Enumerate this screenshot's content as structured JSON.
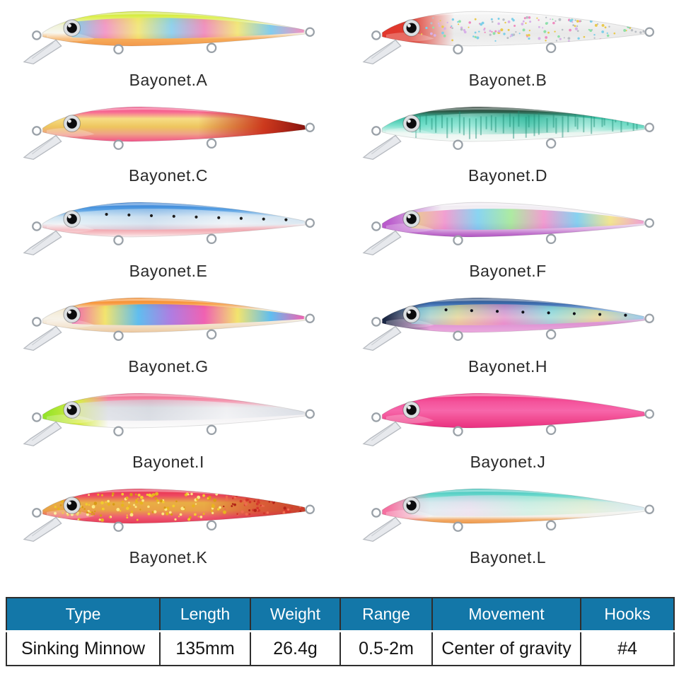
{
  "page": {
    "background": "#ffffff"
  },
  "lures": [
    {
      "label": "Bayonet.A",
      "body": [
        [
          0,
          "#c9e31f"
        ],
        [
          0.18,
          "#dff05a"
        ],
        [
          0.4,
          "#f0f2d8"
        ],
        [
          0.62,
          "#f7f7ef"
        ],
        [
          0.8,
          "#f6ab59"
        ],
        [
          1,
          "#f3994c"
        ]
      ],
      "band": {
        "colors": [
          "#5fc9f0",
          "#f285c2",
          "#f2e468",
          "#79c9f0",
          "#ef7ab8",
          "#f2e468",
          "#66c2ee",
          "#f07ab6"
        ],
        "opacity": 0.8
      }
    },
    {
      "label": "Bayonet.B",
      "body": [
        [
          0,
          "#f6f6f6"
        ],
        [
          0.35,
          "#f1f1f1"
        ],
        [
          0.65,
          "#e9e9e9"
        ],
        [
          1,
          "#f2f2f2"
        ]
      ],
      "overlay": [
        [
          0,
          "#e4342b"
        ],
        [
          0.17,
          "#df3a2e"
        ],
        [
          0.32,
          "rgba(223,58,46,0)"
        ]
      ],
      "glitter": [
        {
          "count": 170,
          "colors": [
            "#e9c94d",
            "#7ecfe8",
            "#ef8cc0",
            "#b9bec4",
            "#8fe0a8",
            "#d8b0e8"
          ],
          "x": [
            0.21,
            0.97
          ],
          "y": [
            0.24,
            0.6
          ],
          "r": [
            1.0,
            2.2
          ]
        }
      ]
    },
    {
      "label": "Bayonet.C",
      "body": [
        [
          0,
          "#f2467e"
        ],
        [
          0.16,
          "#f76d94"
        ],
        [
          0.34,
          "#f6dd85"
        ],
        [
          0.58,
          "#eec55e"
        ],
        [
          0.78,
          "#efa287"
        ],
        [
          1,
          "#f2548a"
        ]
      ],
      "overlay": [
        [
          0.6,
          "rgba(190,32,18,0)"
        ],
        [
          0.82,
          "rgba(198,32,16,0.85)"
        ],
        [
          0.95,
          "#8c1610"
        ],
        [
          1,
          "#6a100c"
        ]
      ]
    },
    {
      "label": "Bayonet.D",
      "body": [
        [
          0,
          "#22352b"
        ],
        [
          0.14,
          "#2e5d4a"
        ],
        [
          0.32,
          "#3cc3a8"
        ],
        [
          0.55,
          "#7fe2cf"
        ],
        [
          0.75,
          "#e9f5f0"
        ],
        [
          1,
          "#f6faf8"
        ]
      ],
      "band": {
        "colors": [
          "#57d8c0",
          "#bdf2e6",
          "#3bb79c",
          "#d9f6ee",
          "#49cdb2"
        ],
        "opacity": 0.5
      },
      "stripes": {
        "color": "#1d8f76",
        "opacity": 0.45,
        "count": 42
      }
    },
    {
      "label": "Bayonet.E",
      "body": [
        [
          0,
          "#2e7ad2"
        ],
        [
          0.22,
          "#5aa2e4"
        ],
        [
          0.42,
          "#cfe4f2"
        ],
        [
          0.62,
          "#eef3f6"
        ],
        [
          0.8,
          "#f2aab2"
        ],
        [
          0.9,
          "#f6c6ca"
        ],
        [
          1,
          "#fbeef0"
        ]
      ],
      "band": {
        "colors": [
          "#dff0f8",
          "#c4d8ec",
          "#f0f6fa",
          "#cfe0ee"
        ],
        "opacity": 0.55
      },
      "dots": {
        "count": 9,
        "color": "#1c1c1c"
      }
    },
    {
      "label": "Bayonet.F",
      "body": [
        [
          0,
          "#efe9f1"
        ],
        [
          0.3,
          "#f5f2f5"
        ],
        [
          0.58,
          "#f2eaf2"
        ],
        [
          0.78,
          "#dcaee2"
        ],
        [
          0.92,
          "#bd6cca"
        ],
        [
          1,
          "#b055c2"
        ]
      ],
      "overlay": [
        [
          0,
          "#b14ec6"
        ],
        [
          0.1,
          "#ba5bcc"
        ],
        [
          0.28,
          "rgba(186,91,204,0)"
        ]
      ],
      "band": {
        "colors": [
          "#f2e268",
          "#f07cc2",
          "#5cc8f0",
          "#8ee87e",
          "#f07cc2",
          "#58c4ee",
          "#f2e268",
          "#ef82c4"
        ],
        "opacity": 0.7
      }
    },
    {
      "label": "Bayonet.G",
      "body": [
        [
          0,
          "#f5831c"
        ],
        [
          0.16,
          "#f89b43"
        ],
        [
          0.34,
          "#f4ead2"
        ],
        [
          0.6,
          "#f6f2e8"
        ],
        [
          0.85,
          "#f0dbc0"
        ],
        [
          1,
          "#edc89e"
        ]
      ],
      "band": {
        "colors": [
          "#ef49aa",
          "#f2e25a",
          "#46b5f2",
          "#a468e2",
          "#ef49aa",
          "#f2e25a",
          "#46b5f2",
          "#ef49aa"
        ],
        "opacity": 0.85
      }
    },
    {
      "label": "Bayonet.H",
      "body": [
        [
          0,
          "#2c4a78"
        ],
        [
          0.18,
          "#3e6fb2"
        ],
        [
          0.38,
          "#9cc2e6"
        ],
        [
          0.56,
          "#dcd4e8"
        ],
        [
          0.74,
          "#de93d2"
        ],
        [
          1,
          "#eba9de"
        ]
      ],
      "overlay": [
        [
          0,
          "#141f38"
        ],
        [
          0.09,
          "#1a2744"
        ],
        [
          0.24,
          "rgba(26,39,68,0)"
        ]
      ],
      "band": {
        "colors": [
          "#74d8f2",
          "#f2e27e",
          "#f08cc8",
          "#8ce8d8",
          "#f2e27e",
          "#74c8f0"
        ],
        "opacity": 0.6
      },
      "dots": {
        "count": 8,
        "color": "#101018"
      }
    },
    {
      "label": "Bayonet.I",
      "body": [
        [
          0,
          "#ee5d85"
        ],
        [
          0.2,
          "#f591ab"
        ],
        [
          0.42,
          "#eceaec"
        ],
        [
          0.66,
          "#f4f2f4"
        ],
        [
          1,
          "#fbfbfb"
        ]
      ],
      "overlay": [
        [
          0,
          "#6edc1e"
        ],
        [
          0.1,
          "#9ce42c"
        ],
        [
          0.2,
          "#d8ec48"
        ],
        [
          0.3,
          "rgba(216,236,72,0)"
        ]
      ],
      "band": {
        "colors": [
          "#dfe3ea",
          "#c9cfd9",
          "#f0f2f5",
          "#cdd4de"
        ],
        "opacity": 0.6
      }
    },
    {
      "label": "Bayonet.J",
      "body": [
        [
          0,
          "#ee2e7c"
        ],
        [
          0.25,
          "#f4539b"
        ],
        [
          0.5,
          "#f766aa"
        ],
        [
          0.75,
          "#f14b92"
        ],
        [
          1,
          "#e93080"
        ]
      ]
    },
    {
      "label": "Bayonet.K",
      "body": [
        [
          0,
          "#e82949"
        ],
        [
          0.2,
          "#ee4a62"
        ],
        [
          0.4,
          "#e9ae44"
        ],
        [
          0.62,
          "#e9a246"
        ],
        [
          0.82,
          "#ee5a72"
        ],
        [
          1,
          "#e73a56"
        ]
      ],
      "overlay": [
        [
          0.62,
          "rgba(200,30,40,0)"
        ],
        [
          0.8,
          "rgba(206,34,44,0.55)"
        ],
        [
          1,
          "rgba(180,22,30,0.75)"
        ]
      ],
      "glitter": [
        {
          "count": 150,
          "colors": [
            "#f2cc2e",
            "#e8b41e",
            "#fbe781",
            "#d89a14"
          ],
          "x": [
            0.12,
            0.7
          ],
          "y": [
            0.22,
            0.62
          ],
          "r": [
            1.2,
            2.6
          ]
        },
        {
          "count": 70,
          "colors": [
            "#d4372c",
            "#b32418",
            "#ef6a4e"
          ],
          "x": [
            0.68,
            0.95
          ],
          "y": [
            0.24,
            0.55
          ],
          "r": [
            1.2,
            2.4
          ]
        }
      ]
    },
    {
      "label": "Bayonet.L",
      "body": [
        [
          0,
          "#35c2ba"
        ],
        [
          0.2,
          "#6cd8cc"
        ],
        [
          0.4,
          "#d4ecea"
        ],
        [
          0.62,
          "#f2f6f4"
        ],
        [
          0.8,
          "#f4f0ea"
        ],
        [
          0.9,
          "#f2a964"
        ],
        [
          1,
          "#ef9a4e"
        ]
      ],
      "overlay": [
        [
          0,
          "#f2548e"
        ],
        [
          0.1,
          "#f573a2"
        ],
        [
          0.24,
          "rgba(245,115,162,0)"
        ]
      ],
      "band": {
        "colors": [
          "#cfeef2",
          "#ecd8f0",
          "#bfeede",
          "#dcecc8",
          "#cfe6f4"
        ],
        "opacity": 0.55
      }
    }
  ],
  "table": {
    "headers": [
      "Type",
      "Length",
      "Weight",
      "Range",
      "Movement",
      "Hooks"
    ],
    "values": [
      "Sinking Minnow",
      "135mm",
      "26.4g",
      "0.5-2m",
      "Center of gravity",
      "#4"
    ],
    "colors": {
      "header_bg": "#1377a8",
      "header_text": "#ffffff",
      "border": "#2e2e2e",
      "value_text": "#141414",
      "label_text": "#2a2a2a"
    }
  }
}
